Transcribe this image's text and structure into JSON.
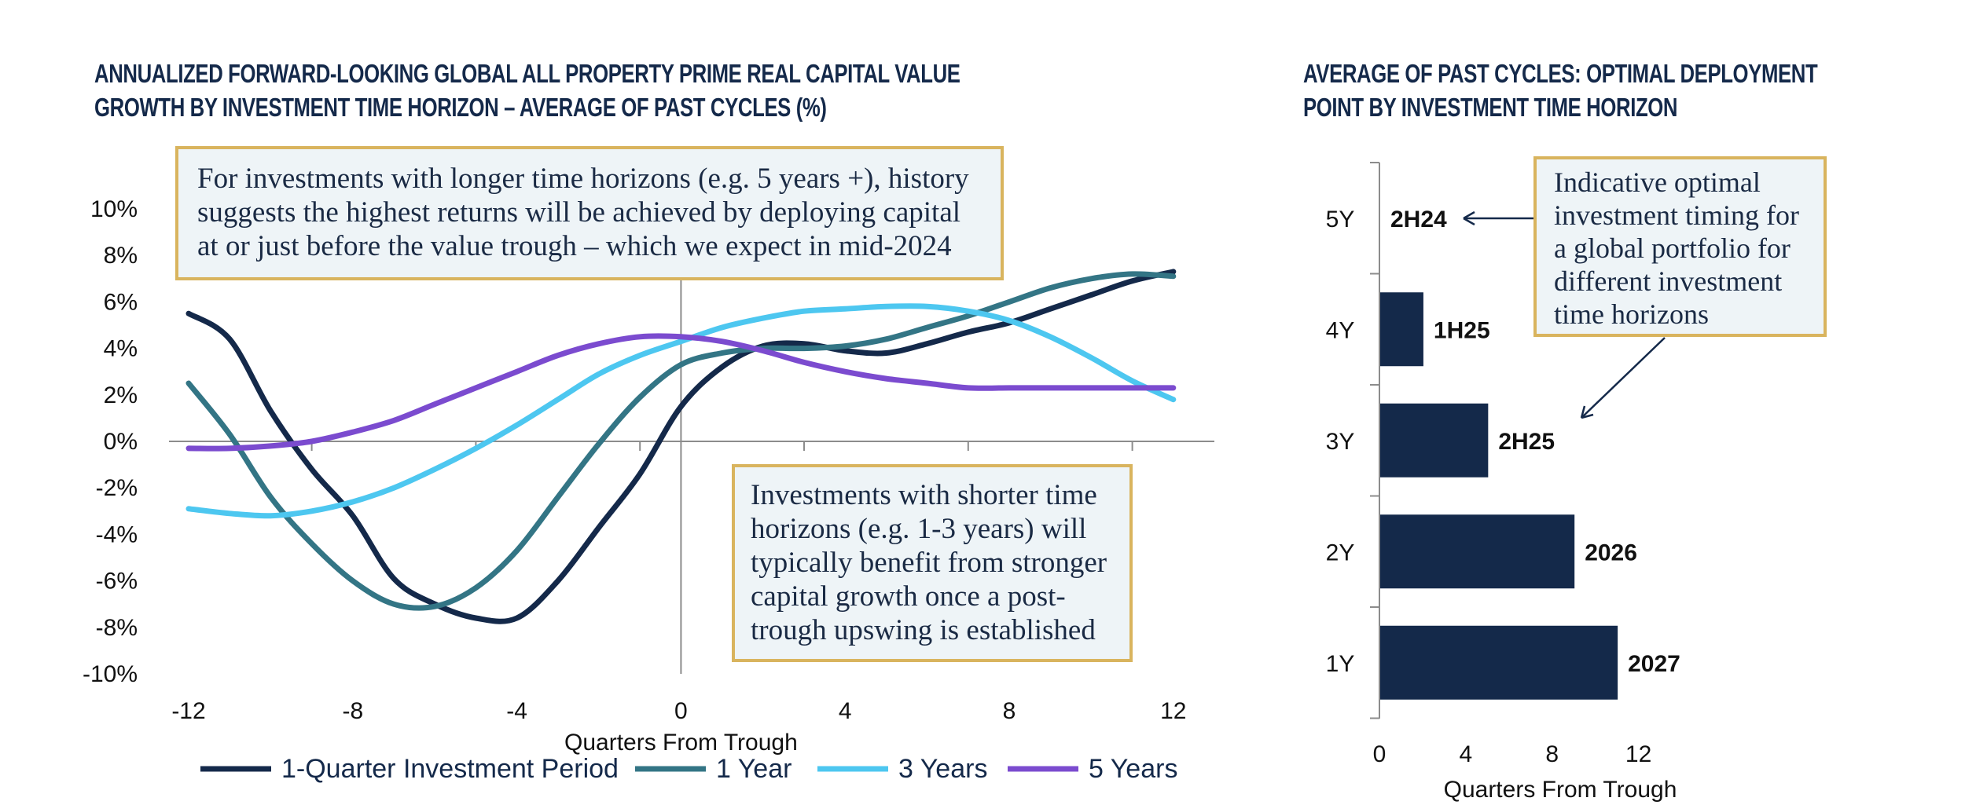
{
  "chart_data": [
    {
      "type": "line",
      "title": "Annualized forward-looking global all property prime real capital value growth by investment time horizon – average of past cycles (%)",
      "xlabel": "Quarters From Trough",
      "ylabel": "",
      "xlim": [
        -12,
        13
      ],
      "ylim": [
        -10,
        10
      ],
      "x_ticks": [
        -12,
        -8,
        -4,
        0,
        4,
        8,
        12
      ],
      "x_tick_labels": [
        "-12",
        "-8",
        "-4",
        "0",
        "4",
        "8",
        "12"
      ],
      "y_ticks": [
        10,
        8,
        6,
        4,
        2,
        0,
        -2,
        -4,
        -6,
        -8,
        -10
      ],
      "y_tick_labels": [
        "10%",
        "8%",
        "6%",
        "4%",
        "2%",
        "0%",
        "-2%",
        "-4%",
        "-6%",
        "-8%",
        "-10%"
      ],
      "x": [
        -12,
        -11,
        -10,
        -9,
        -8,
        -7,
        -6,
        -5,
        -4,
        -3,
        -2,
        -1,
        0,
        1,
        2,
        3,
        4,
        5,
        6,
        7,
        8,
        9,
        10,
        11,
        12
      ],
      "series": [
        {
          "name": "1-Quarter Investment Period",
          "color": "#14294a",
          "values": [
            5.5,
            4.4,
            1.3,
            -1.2,
            -3.2,
            -5.9,
            -7.0,
            -7.6,
            -7.6,
            -6.0,
            -3.7,
            -1.4,
            1.5,
            3.2,
            4.1,
            4.2,
            3.9,
            3.8,
            4.2,
            4.7,
            5.1,
            5.7,
            6.3,
            6.9,
            7.3
          ]
        },
        {
          "name": "1 Year",
          "color": "#337585",
          "values": [
            2.5,
            0.3,
            -2.4,
            -4.4,
            -6.0,
            -7.0,
            -7.1,
            -6.3,
            -4.7,
            -2.4,
            -0.1,
            1.9,
            3.3,
            3.8,
            4.0,
            4.0,
            4.1,
            4.4,
            4.9,
            5.4,
            6.0,
            6.6,
            7.0,
            7.2,
            7.1
          ]
        },
        {
          "name": "3 Years",
          "color": "#4dc7f0",
          "values": [
            -2.9,
            -3.1,
            -3.2,
            -3.0,
            -2.6,
            -2.0,
            -1.2,
            -0.3,
            0.7,
            1.8,
            2.9,
            3.7,
            4.3,
            4.9,
            5.3,
            5.6,
            5.7,
            5.8,
            5.8,
            5.6,
            5.2,
            4.5,
            3.6,
            2.6,
            1.8
          ]
        },
        {
          "name": "5 Years",
          "color": "#7b4bcf",
          "values": [
            -0.3,
            -0.3,
            -0.2,
            0.0,
            0.4,
            0.9,
            1.6,
            2.3,
            3.0,
            3.7,
            4.2,
            4.5,
            4.5,
            4.3,
            3.9,
            3.4,
            3.0,
            2.7,
            2.5,
            2.3,
            2.3,
            2.3,
            2.3,
            2.3,
            2.3
          ]
        }
      ],
      "legend": "bottom"
    },
    {
      "type": "bar",
      "orientation": "horizontal",
      "title": "Average of past cycles: optimal deployment point by investment time horizon",
      "xlabel": "Quarters From Trough",
      "xlim": [
        0,
        15
      ],
      "x_ticks": [
        0,
        4,
        8,
        12
      ],
      "x_tick_labels": [
        "0",
        "4",
        "8",
        "12"
      ],
      "categories": [
        "5Y",
        "4Y",
        "3Y",
        "2Y",
        "1Y"
      ],
      "values": [
        0,
        2,
        5,
        9,
        11
      ],
      "data_labels": [
        "2H24",
        "1H25",
        "2H25",
        "2026",
        "2027"
      ],
      "color": "#14294a"
    }
  ],
  "annotations": {
    "long_horizon": "For investments with longer time horizons (e.g. 5 years +), history suggests the highest returns will be achieved by deploying capital at or just before the value trough – which we expect in mid-2024",
    "short_horizon": "Investments with shorter time horizons (e.g. 1-3 years) will typically benefit from stronger capital growth once a post-trough upswing is established",
    "optimal_timing": "Indicative optimal investment timing for a global portfolio for different investment time horizons"
  },
  "colors": {
    "title": "#14294a",
    "annotation_border": "#d9b45e",
    "annotation_bg": "#eef4f7"
  }
}
